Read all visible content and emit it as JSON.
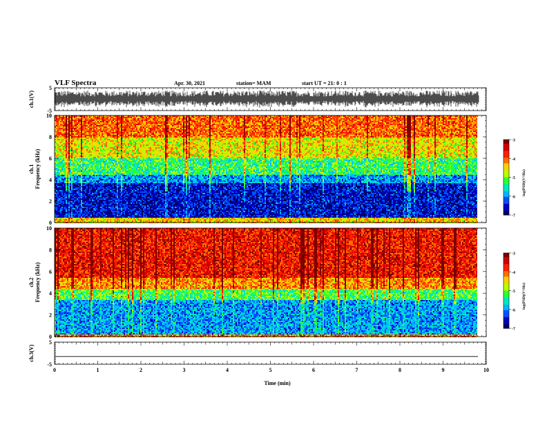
{
  "header": {
    "title": "VLF Spectra",
    "date": "Apr. 30, 2021",
    "station": "station= MAM",
    "start": "start  UT  =   21: 0   : 1"
  },
  "colors": {
    "scale": [
      "#7a0000",
      "#d00000",
      "#ff2000",
      "#ff7000",
      "#ffd000",
      "#b8ff00",
      "#30ff30",
      "#00e8c0",
      "#00b8ff",
      "#0050ff",
      "#0000c0",
      "#000060"
    ]
  },
  "chart_data": [
    {
      "type": "line",
      "ylabel": "ch.1(V)",
      "ylim": [
        -5,
        5
      ],
      "yticks": [
        "5",
        "-5"
      ],
      "xlim": [
        0,
        10
      ],
      "description_series": "noisy waveform around 0 V, amplitude approx ±3 V"
    },
    {
      "type": "heatmap",
      "ylabel_line1": "ch.1",
      "ylabel_line2": "Frequency  (kHz)",
      "ylim": [
        0,
        10
      ],
      "yticks": [
        "0",
        "2",
        "4",
        "6",
        "8",
        "10"
      ],
      "xlim": [
        0,
        10
      ],
      "colorbar": {
        "label": "log(PSD)(V²/Hz)",
        "range": [
          -7,
          -3
        ],
        "ticks": [
          "-3",
          "-4",
          "-5",
          "-6",
          "-7"
        ]
      },
      "bands": [
        {
          "from_khz": 0.0,
          "to_khz": 0.5,
          "level": -4.5
        },
        {
          "from_khz": 0.5,
          "to_khz": 3.7,
          "level": -6.6
        },
        {
          "from_khz": 3.7,
          "to_khz": 4.5,
          "level": -6.0
        },
        {
          "from_khz": 4.5,
          "to_khz": 6.0,
          "level": -5.3
        },
        {
          "from_khz": 6.0,
          "to_khz": 8.0,
          "level": -4.6
        },
        {
          "from_khz": 8.0,
          "to_khz": 10.0,
          "level": -4.0
        }
      ]
    },
    {
      "type": "heatmap",
      "ylabel_line1": "ch.2",
      "ylabel_line2": "Frequency  (kHz)",
      "ylim": [
        0,
        10
      ],
      "yticks": [
        "0",
        "2",
        "4",
        "6",
        "8",
        "10"
      ],
      "xlim": [
        0,
        10
      ],
      "colorbar": {
        "label": "log(PSD)(V²/Hz)",
        "range": [
          -7,
          -3
        ],
        "ticks": [
          "-3",
          "-4",
          "-5",
          "-6",
          "-7"
        ]
      },
      "bands": [
        {
          "from_khz": 0.0,
          "to_khz": 0.3,
          "level": -4.2
        },
        {
          "from_khz": 0.3,
          "to_khz": 3.5,
          "level": -6.0
        },
        {
          "from_khz": 3.5,
          "to_khz": 4.5,
          "level": -5.2
        },
        {
          "from_khz": 4.5,
          "to_khz": 5.5,
          "level": -4.2
        },
        {
          "from_khz": 5.5,
          "to_khz": 10.0,
          "level": -3.6
        }
      ]
    },
    {
      "type": "line",
      "ylabel": "ch.3(V)",
      "ylim": [
        -5,
        5
      ],
      "yticks": [
        "5",
        "-5"
      ],
      "xlim": [
        0,
        10
      ],
      "xlabel": "Time  (min)",
      "xticks": [
        "0",
        "1",
        "2",
        "3",
        "4",
        "5",
        "6",
        "7",
        "8",
        "9",
        "10"
      ],
      "flat_value": -1.5
    }
  ]
}
